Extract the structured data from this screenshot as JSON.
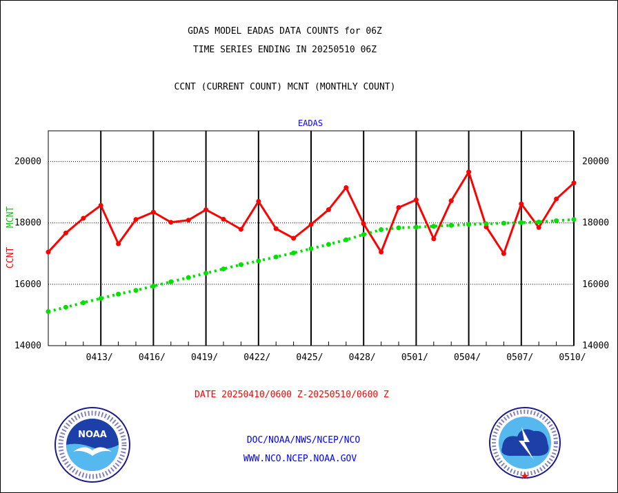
{
  "titles": {
    "line1": "GDAS MODEL EADAS DATA COUNTS for 06Z",
    "line2": "TIME SERIES ENDING IN 20250510 06Z",
    "line3": "CCNT (CURRENT COUNT) MCNT (MONTHLY COUNT)"
  },
  "panel_title": "EADAS",
  "ylabel": {
    "ccnt": "CCNT",
    "mcnt": "MCNT"
  },
  "date_range": "DATE 20250410/0600 Z-20250510/0600 Z",
  "footer": {
    "line1": "DOC/NOAA/NWS/NCEP/NCO",
    "line2": "WWW.NCO.NCEP.NOAA.GOV"
  },
  "logos": {
    "left": "noaa-logo",
    "right": "national-weather-service-logo"
  },
  "colors": {
    "ccnt": "#ff0000",
    "mcnt": "#00e000",
    "title": "#000000",
    "link": "#0000ff"
  },
  "chart_data": {
    "type": "line",
    "x": [
      "0410",
      "0411",
      "0412",
      "0413",
      "0414",
      "0415",
      "0416",
      "0417",
      "0418",
      "0419",
      "0420",
      "0421",
      "0422",
      "0423",
      "0424",
      "0425",
      "0426",
      "0427",
      "0428",
      "0429",
      "0430",
      "0501",
      "0502",
      "0503",
      "0504",
      "0505",
      "0506",
      "0507",
      "0508",
      "0509",
      "0510"
    ],
    "x_tick_labels": [
      "0413/",
      "0416/",
      "0419/",
      "0422/",
      "0425/",
      "0428/",
      "0501/",
      "0504/",
      "0507/",
      "0510/"
    ],
    "ylim": [
      14000,
      21000
    ],
    "y_ticks": [
      "14000",
      "16000",
      "18000",
      "20000"
    ],
    "grid": true,
    "series": [
      {
        "name": "CCNT",
        "values": [
          17050,
          17670,
          18150,
          18570,
          17320,
          18110,
          18350,
          18020,
          18090,
          18430,
          18120,
          17790,
          18700,
          17810,
          17500,
          17950,
          18430,
          19150,
          17970,
          17050,
          18500,
          18750,
          17480,
          18720,
          19660,
          17870,
          17000,
          18620,
          17850,
          18780,
          19300
        ]
      },
      {
        "name": "MCNT",
        "values": [
          15110,
          15250,
          15400,
          15540,
          15680,
          15800,
          15940,
          16080,
          16220,
          16360,
          16500,
          16640,
          16760,
          16890,
          17020,
          17160,
          17300,
          17450,
          17620,
          17780,
          17840,
          17860,
          17890,
          17920,
          17950,
          17970,
          17990,
          18010,
          18030,
          18070,
          18110
        ]
      }
    ]
  }
}
